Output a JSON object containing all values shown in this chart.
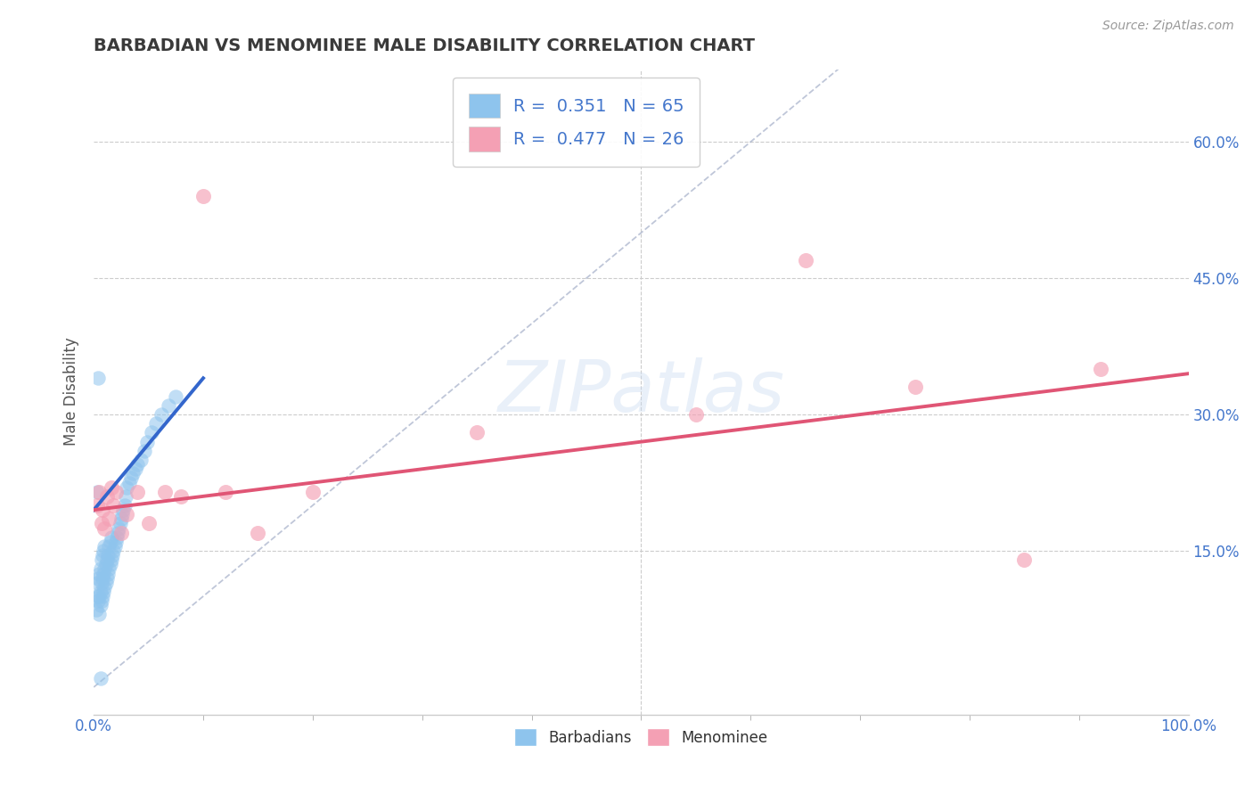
{
  "title": "BARBADIAN VS MENOMINEE MALE DISABILITY CORRELATION CHART",
  "source": "Source: ZipAtlas.com",
  "ylabel": "Male Disability",
  "xlim": [
    0.0,
    1.0
  ],
  "ylim": [
    -0.03,
    0.68
  ],
  "xticks": [
    0.0,
    1.0
  ],
  "xticklabels": [
    "0.0%",
    "100.0%"
  ],
  "yticks": [
    0.15,
    0.3,
    0.45,
    0.6
  ],
  "yticklabels": [
    "15.0%",
    "30.0%",
    "45.0%",
    "60.0%"
  ],
  "r_barbadian": 0.351,
  "n_barbadian": 65,
  "r_menominee": 0.477,
  "n_menominee": 26,
  "barbadian_color": "#8ec4ed",
  "menominee_color": "#f4a0b4",
  "trend_barbadian_color": "#3366cc",
  "trend_menominee_color": "#e05575",
  "diag_color": "#aab4cc",
  "watermark": "ZIPatlas",
  "barbadian_x": [
    0.002,
    0.003,
    0.003,
    0.004,
    0.004,
    0.005,
    0.005,
    0.005,
    0.006,
    0.006,
    0.006,
    0.007,
    0.007,
    0.007,
    0.008,
    0.008,
    0.008,
    0.009,
    0.009,
    0.009,
    0.01,
    0.01,
    0.01,
    0.011,
    0.011,
    0.012,
    0.012,
    0.013,
    0.013,
    0.014,
    0.014,
    0.015,
    0.015,
    0.016,
    0.016,
    0.017,
    0.018,
    0.019,
    0.02,
    0.021,
    0.022,
    0.023,
    0.024,
    0.025,
    0.026,
    0.027,
    0.028,
    0.029,
    0.03,
    0.032,
    0.034,
    0.036,
    0.038,
    0.04,
    0.043,
    0.046,
    0.049,
    0.053,
    0.057,
    0.062,
    0.068,
    0.075,
    0.003,
    0.004,
    0.006
  ],
  "barbadian_y": [
    0.085,
    0.1,
    0.115,
    0.095,
    0.12,
    0.08,
    0.1,
    0.125,
    0.09,
    0.105,
    0.13,
    0.095,
    0.115,
    0.14,
    0.1,
    0.12,
    0.145,
    0.105,
    0.125,
    0.15,
    0.11,
    0.13,
    0.155,
    0.115,
    0.135,
    0.12,
    0.14,
    0.125,
    0.145,
    0.13,
    0.155,
    0.135,
    0.16,
    0.14,
    0.165,
    0.145,
    0.15,
    0.155,
    0.16,
    0.165,
    0.17,
    0.175,
    0.18,
    0.185,
    0.19,
    0.195,
    0.2,
    0.21,
    0.22,
    0.225,
    0.23,
    0.235,
    0.24,
    0.245,
    0.25,
    0.26,
    0.27,
    0.28,
    0.29,
    0.3,
    0.31,
    0.32,
    0.215,
    0.34,
    0.01
  ],
  "menominee_x": [
    0.003,
    0.005,
    0.007,
    0.008,
    0.01,
    0.012,
    0.014,
    0.016,
    0.018,
    0.02,
    0.025,
    0.03,
    0.04,
    0.05,
    0.065,
    0.08,
    0.1,
    0.12,
    0.15,
    0.2,
    0.35,
    0.55,
    0.65,
    0.75,
    0.85,
    0.92
  ],
  "menominee_y": [
    0.2,
    0.215,
    0.18,
    0.195,
    0.175,
    0.21,
    0.185,
    0.22,
    0.2,
    0.215,
    0.17,
    0.19,
    0.215,
    0.18,
    0.215,
    0.21,
    0.54,
    0.215,
    0.17,
    0.215,
    0.28,
    0.3,
    0.47,
    0.33,
    0.14,
    0.35
  ],
  "barb_trend_x": [
    0.0,
    0.1
  ],
  "barb_trend_y": [
    0.195,
    0.34
  ],
  "men_trend_x": [
    0.0,
    1.0
  ],
  "men_trend_y": [
    0.195,
    0.345
  ]
}
